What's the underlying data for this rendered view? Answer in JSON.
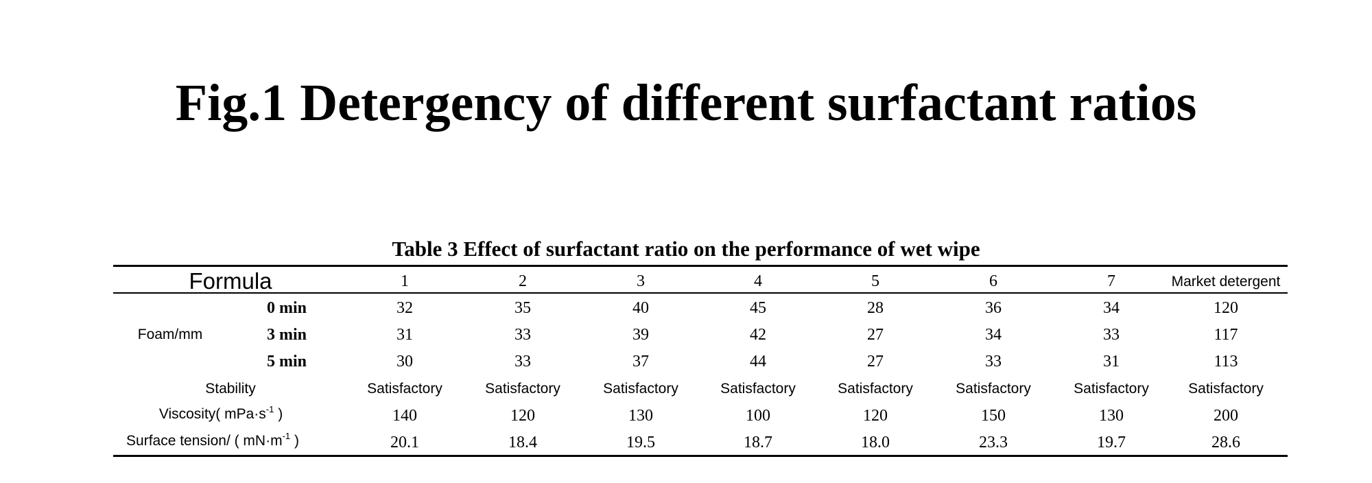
{
  "figure_title": "Fig.1 Detergency of different surfactant ratios",
  "table": {
    "caption": "Table 3 Effect of surfactant ratio on the performance of wet wipe",
    "header": {
      "formula_label": "Formula",
      "columns": [
        "1",
        "2",
        "3",
        "4",
        "5",
        "6",
        "7",
        "Market detergent"
      ]
    },
    "foam": {
      "group_label": "Foam/mm",
      "rows": [
        {
          "label": "0 min",
          "values": [
            "32",
            "35",
            "40",
            "45",
            "28",
            "36",
            "34",
            "120"
          ]
        },
        {
          "label": "3 min",
          "values": [
            "31",
            "33",
            "39",
            "42",
            "27",
            "34",
            "33",
            "117"
          ]
        },
        {
          "label": "5 min",
          "values": [
            "30",
            "33",
            "37",
            "44",
            "27",
            "33",
            "31",
            "113"
          ]
        }
      ]
    },
    "stability": {
      "label": "Stability",
      "values": [
        "Satisfactory",
        "Satisfactory",
        "Satisfactory",
        "Satisfactory",
        "Satisfactory",
        "Satisfactory",
        "Satisfactory",
        "Satisfactory"
      ]
    },
    "viscosity": {
      "label": "Viscosity( mPa·s",
      "unit_exp": "-1",
      "label_end": " )",
      "values": [
        "140",
        "120",
        "130",
        "100",
        "120",
        "150",
        "130",
        "200"
      ]
    },
    "surface_tension": {
      "label": "Surface tension/ ( mN·m",
      "unit_exp": "-1",
      "label_end": " )",
      "values": [
        "20.1",
        "18.4",
        "19.5",
        "18.7",
        "18.0",
        "23.3",
        "19.7",
        "28.6"
      ]
    }
  }
}
